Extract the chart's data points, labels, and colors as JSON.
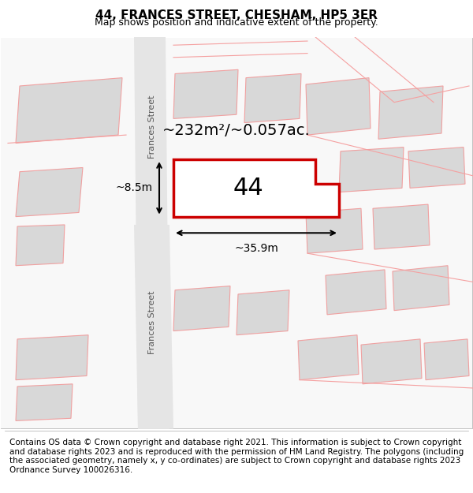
{
  "title": "44, FRANCES STREET, CHESHAM, HP5 3ER",
  "subtitle": "Map shows position and indicative extent of the property.",
  "footer": "Contains OS data © Crown copyright and database right 2021. This information is subject to Crown copyright and database rights 2023 and is reproduced with the permission of HM Land Registry. The polygons (including the associated geometry, namely x, y co-ordinates) are subject to Crown copyright and database rights 2023 Ordnance Survey 100026316.",
  "area_label": "~232m²/~0.057ac.",
  "width_label": "~35.9m",
  "height_label": "~8.5m",
  "number_label": "44",
  "background_color": "#ffffff",
  "map_bg_color": "#f5f5f5",
  "road_color": "#e8e8e8",
  "border_color": "#cccccc",
  "property_fill": "#ffffff",
  "property_edge_color": "#cc0000",
  "other_outline_color": "#f5a0a0",
  "street_label": "Frances Street",
  "title_fontsize": 11,
  "subtitle_fontsize": 9,
  "footer_fontsize": 7.5
}
